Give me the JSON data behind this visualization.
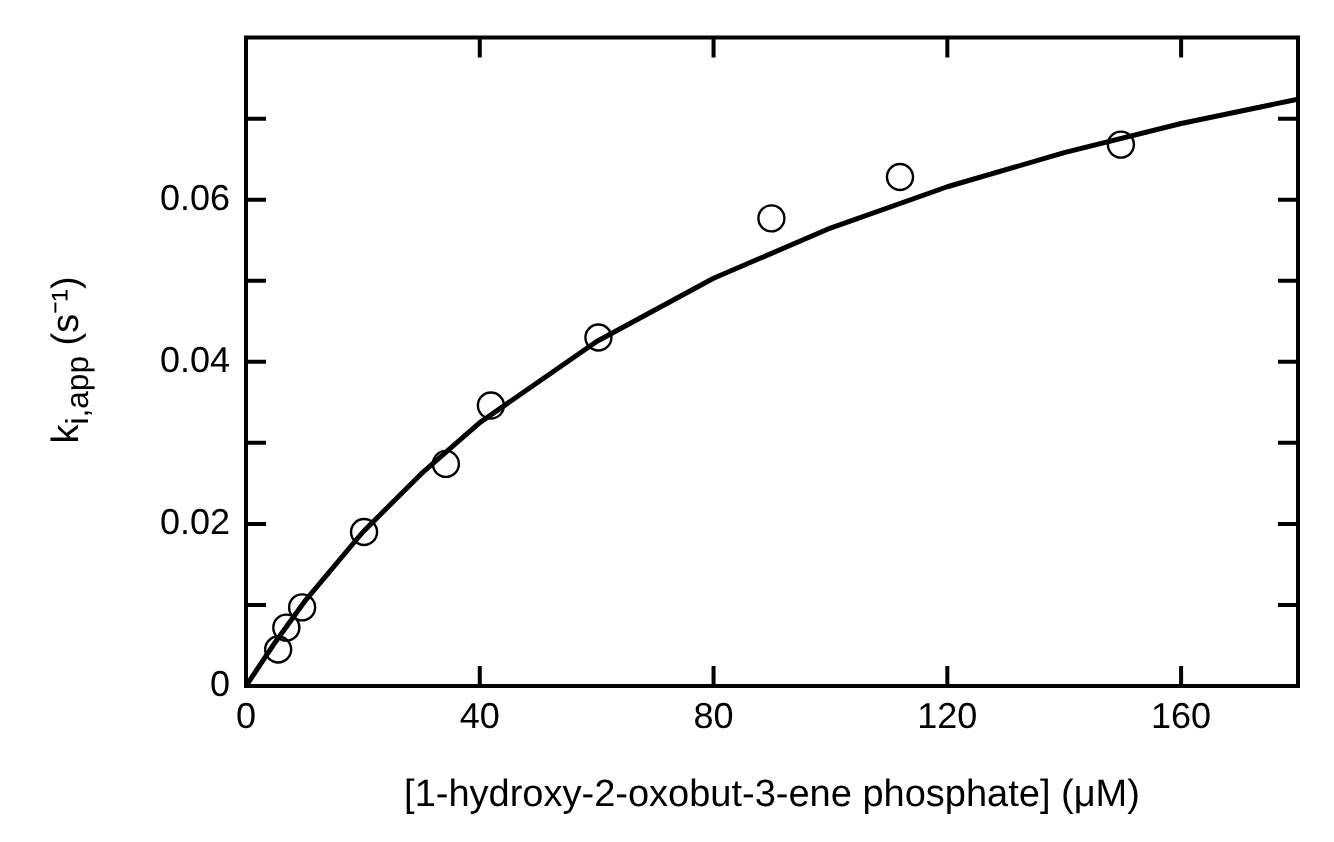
{
  "chart_data": {
    "type": "scatter",
    "xlabel": "[1-hydroxy-2-oxobut-3-ene phosphate] (μM)",
    "ylabel": "k$_{i,app}$ (s⁻¹)",
    "xlim": [
      0,
      180
    ],
    "xticks": [
      0,
      40,
      80,
      120,
      160
    ],
    "ylim": [
      0,
      0.08
    ],
    "yticks": [
      0,
      {
        "value": 0.01,
        "label": null
      },
      0.02,
      {
        "value": 0.03,
        "label": null
      },
      0.04,
      {
        "value": 0.05,
        "label": null
      },
      0.06,
      {
        "value": 0.07,
        "label": null
      }
    ],
    "grid": false,
    "legend": false,
    "marker": "circle",
    "series": [
      {
        "color": "#000000",
        "x": [
          5.5,
          6.9,
          9.6,
          20.2,
          34.2,
          41.9,
          60.3,
          89.9,
          111.9,
          149.7
        ],
        "values": [
          0.0045,
          0.0072,
          0.0097,
          0.019,
          0.0274,
          0.0346,
          0.043,
          0.0577,
          0.0628,
          0.0668
        ]
      },
      {
        "type": "line",
        "color": "#000000",
        "marker": "none",
        "line_style": "solid",
        "x": [
          0,
          5,
          10,
          20,
          30,
          40,
          60,
          80,
          100,
          120,
          140,
          160,
          180
        ],
        "values": [
          0,
          0.0054,
          0.0104,
          0.019,
          0.0262,
          0.0325,
          0.0425,
          0.0503,
          0.0565,
          0.0616,
          0.0658,
          0.0694,
          0.0724
        ]
      }
    ]
  }
}
